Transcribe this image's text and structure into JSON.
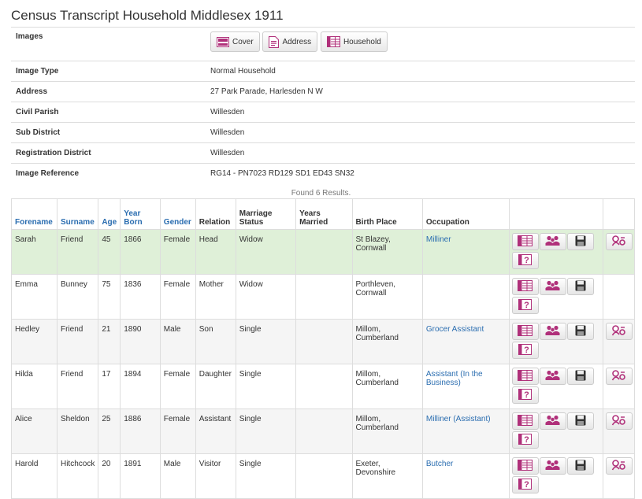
{
  "page": {
    "title": "Census Transcript Household Middlesex 1911"
  },
  "details": {
    "images_label": "Images",
    "image_buttons": {
      "cover": "Cover",
      "address": "Address",
      "household": "Household"
    },
    "rows": [
      {
        "label": "Image Type",
        "value": "Normal Household"
      },
      {
        "label": "Address",
        "value": "27 Park Parade, Harlesden N W"
      },
      {
        "label": "Civil Parish",
        "value": "Willesden"
      },
      {
        "label": "Sub District",
        "value": "Willesden"
      },
      {
        "label": "Registration District",
        "value": "Willesden"
      },
      {
        "label": "Image Reference",
        "value": "RG14 - PN7023 RD129 SD1 ED43 SN32"
      }
    ]
  },
  "results": {
    "found_text": "Found 6 Results.",
    "headers": {
      "forename": "Forename",
      "surname": "Surname",
      "age": "Age",
      "year_born_1": "Year",
      "year_born_2": "Born",
      "gender": "Gender",
      "relation": "Relation",
      "marriage_1": "Marriage",
      "marriage_2": "Status",
      "years_1": "Years",
      "years_2": "Married",
      "birth_place": "Birth Place",
      "occupation": "Occupation"
    },
    "rows": [
      {
        "forename": "Sarah",
        "surname": "Friend",
        "age": "45",
        "year_born": "1866",
        "gender": "Female",
        "relation": "Head",
        "status": "Widow",
        "years_married": "",
        "birth_1": "St Blazey,",
        "birth_2": "Cornwall",
        "occ_1": "Milliner",
        "occ_2": ""
      },
      {
        "forename": "Emma",
        "surname": "Bunney",
        "age": "75",
        "year_born": "1836",
        "gender": "Female",
        "relation": "Mother",
        "status": "Widow",
        "years_married": "",
        "birth_1": "Porthleven,",
        "birth_2": "Cornwall",
        "occ_1": "",
        "occ_2": ""
      },
      {
        "forename": "Hedley",
        "surname": "Friend",
        "age": "21",
        "year_born": "1890",
        "gender": "Male",
        "relation": "Son",
        "status": "Single",
        "years_married": "",
        "birth_1": "Millom,",
        "birth_2": "Cumberland",
        "occ_1": "Grocer Assistant",
        "occ_2": ""
      },
      {
        "forename": "Hilda",
        "surname": "Friend",
        "age": "17",
        "year_born": "1894",
        "gender": "Female",
        "relation": "Daughter",
        "status": "Single",
        "years_married": "",
        "birth_1": "Millom,",
        "birth_2": "Cumberland",
        "occ_1": "Assistant (In the",
        "occ_2": "Business)"
      },
      {
        "forename": "Alice",
        "surname": "Sheldon",
        "age": "25",
        "year_born": "1886",
        "gender": "Female",
        "relation": "Assistant",
        "status": "Single",
        "years_married": "",
        "birth_1": "Millom,",
        "birth_2": "Cumberland",
        "occ_1": "Milliner (Assistant)",
        "occ_2": ""
      },
      {
        "forename": "Harold",
        "surname": "Hitchcock",
        "age": "20",
        "year_born": "1891",
        "gender": "Male",
        "relation": "Visitor",
        "status": "Single",
        "years_married": "",
        "birth_1": "Exeter,",
        "birth_2": "Devonshire",
        "occ_1": "Butcher",
        "occ_2": ""
      }
    ]
  },
  "colors": {
    "highlight_row": "#dff0d8",
    "link": "#2a6db0",
    "icon_magenta": "#b0307a"
  }
}
